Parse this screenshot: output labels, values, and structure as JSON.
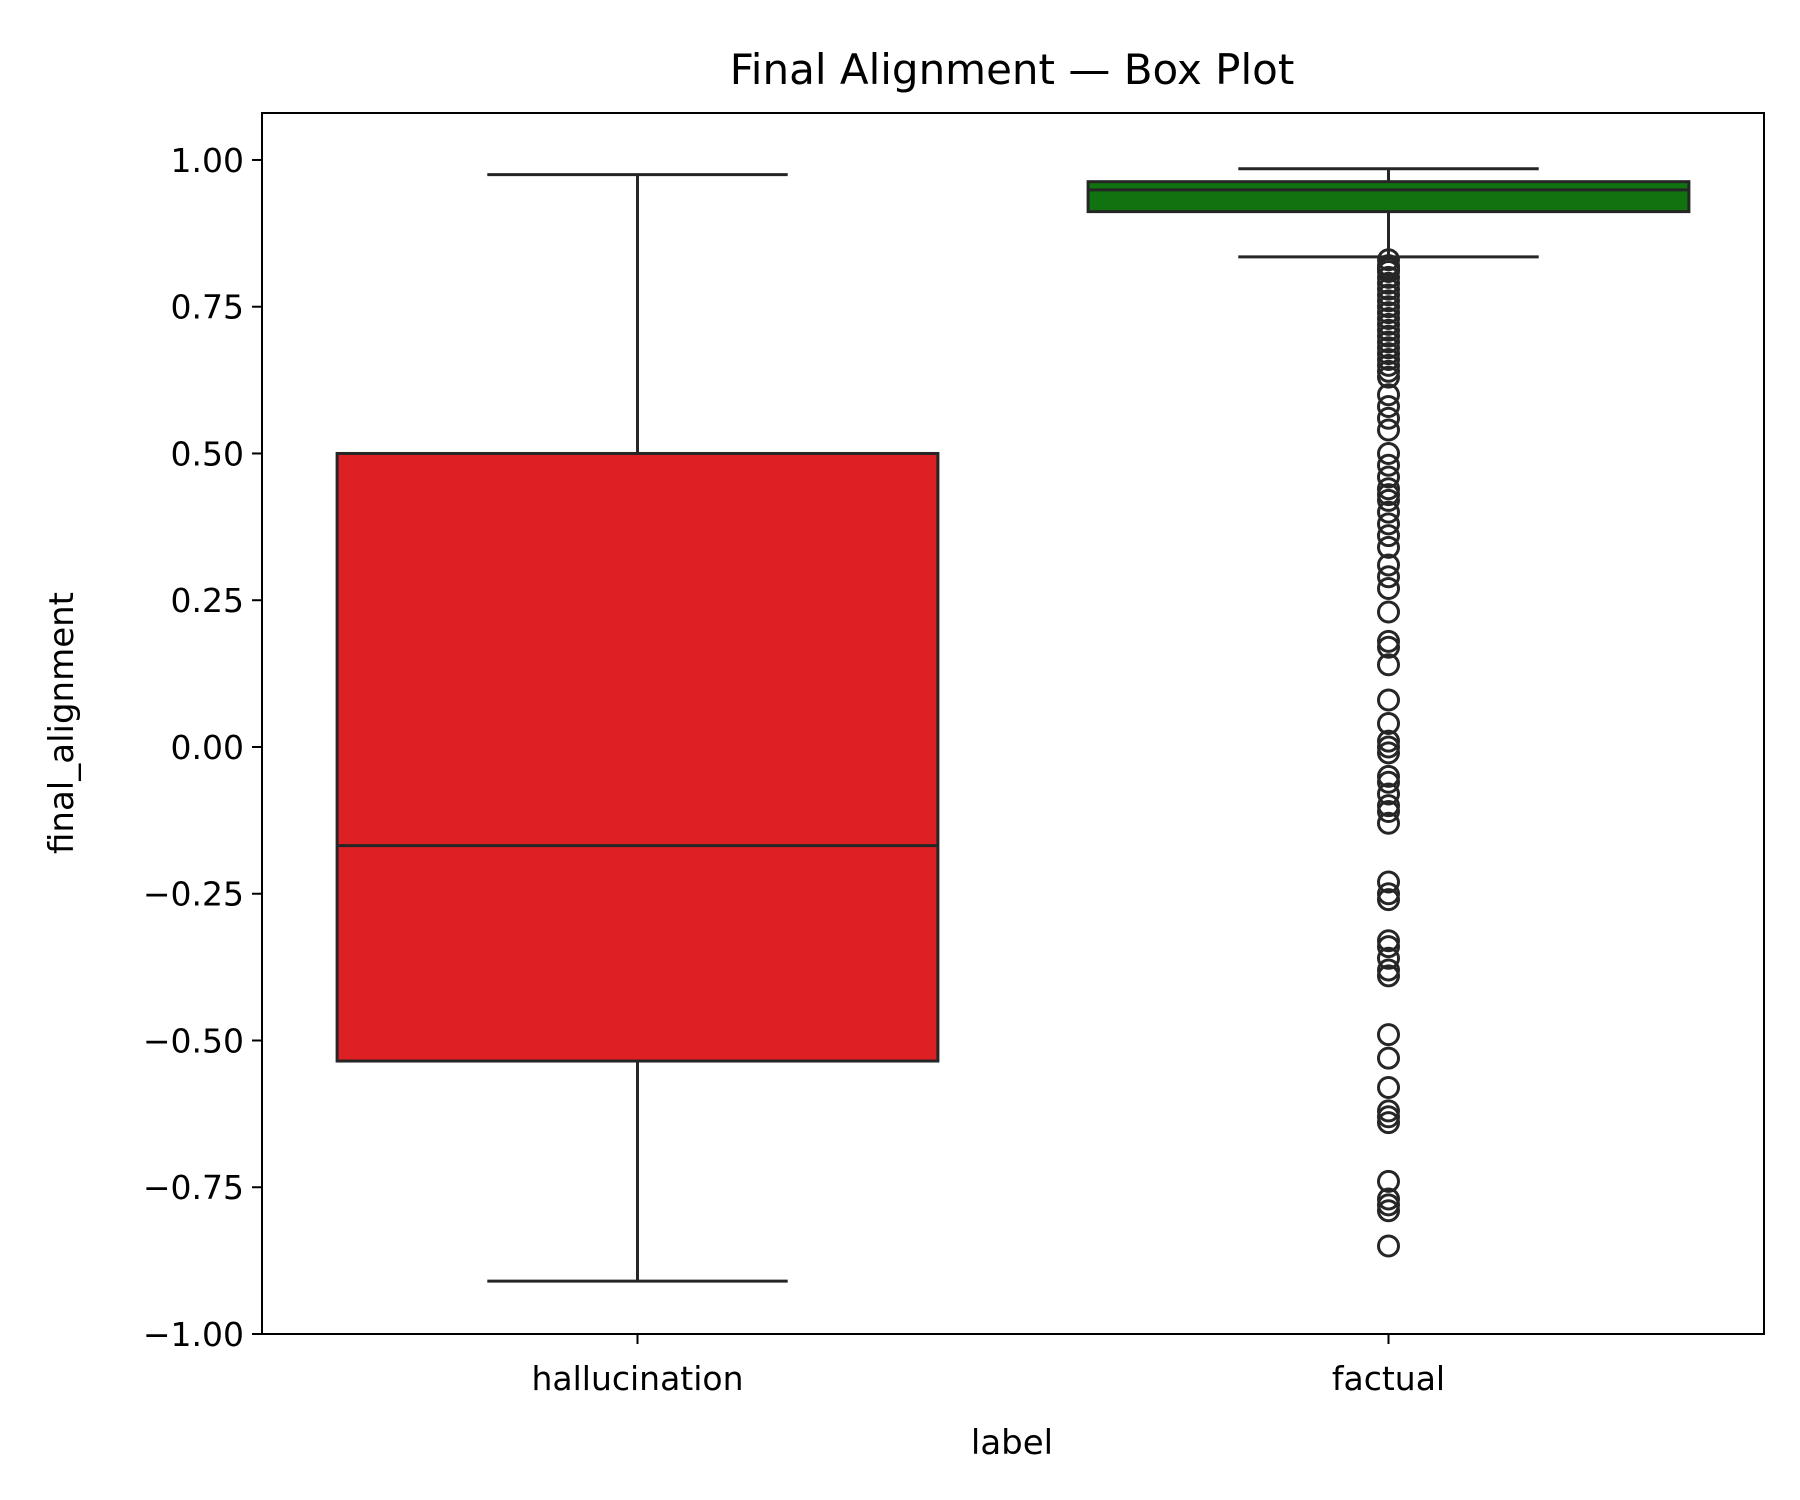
{
  "chart_data": {
    "type": "box",
    "title": "Final Alignment — Box Plot",
    "xlabel": "label",
    "ylabel": "final_alignment",
    "ylim": [
      -1.0,
      1.08
    ],
    "yticks": [
      1.0,
      0.75,
      0.5,
      0.25,
      0.0,
      -0.25,
      -0.5,
      -0.75,
      -1.0
    ],
    "ytick_labels": [
      "1.00",
      "0.75",
      "0.50",
      "0.25",
      "0.00",
      "−0.25",
      "−0.50",
      "−0.75",
      "−1.00"
    ],
    "categories": [
      "hallucination",
      "factual"
    ],
    "boxes": [
      {
        "category": "hallucination",
        "color": "#dd2024",
        "whisker_low": -0.91,
        "q1": -0.535,
        "median": -0.168,
        "q3": 0.5,
        "whisker_high": 0.975,
        "outliers": []
      },
      {
        "category": "factual",
        "color": "#107310",
        "whisker_low": 0.835,
        "q1": 0.912,
        "median": 0.949,
        "q3": 0.963,
        "whisker_high": 0.985,
        "outliers": [
          0.83,
          0.82,
          0.815,
          0.81,
          0.8,
          0.79,
          0.78,
          0.77,
          0.76,
          0.75,
          0.74,
          0.73,
          0.72,
          0.71,
          0.7,
          0.69,
          0.68,
          0.67,
          0.66,
          0.65,
          0.64,
          0.63,
          0.6,
          0.58,
          0.56,
          0.54,
          0.5,
          0.48,
          0.46,
          0.44,
          0.43,
          0.42,
          0.4,
          0.38,
          0.36,
          0.34,
          0.31,
          0.29,
          0.27,
          0.23,
          0.18,
          0.17,
          0.14,
          0.08,
          0.04,
          0.01,
          0.0,
          -0.01,
          -0.05,
          -0.06,
          -0.08,
          -0.1,
          -0.11,
          -0.13,
          -0.23,
          -0.25,
          -0.26,
          -0.33,
          -0.34,
          -0.36,
          -0.38,
          -0.39,
          -0.49,
          -0.53,
          -0.58,
          -0.62,
          -0.63,
          -0.64,
          -0.74,
          -0.77,
          -0.78,
          -0.79,
          -0.85
        ]
      }
    ],
    "grid": false,
    "legend": "none"
  }
}
